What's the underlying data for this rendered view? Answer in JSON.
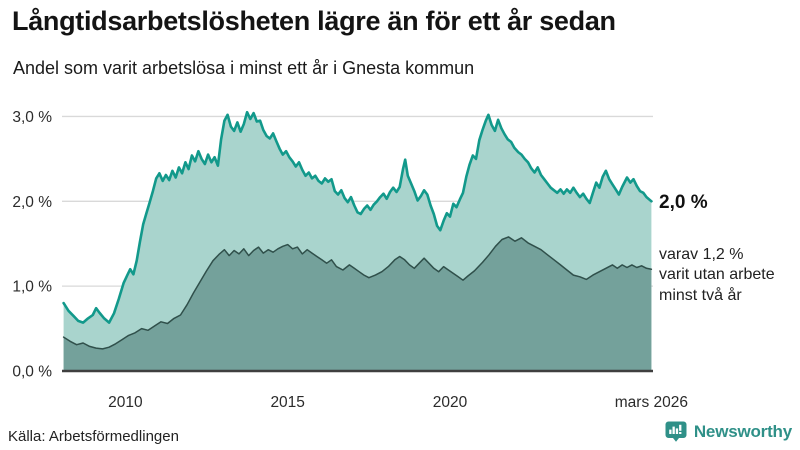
{
  "header": {
    "title": "Långtidsarbetslösheten lägre än för ett år sedan",
    "subtitle": "Andel som varit arbetslösa i minst ett år i Gnesta kommun"
  },
  "annotations": {
    "end_value": "2,0 %",
    "secondary": "varav 1,2 %\nvarit utan arbete\nminst två år"
  },
  "footer": {
    "source": "Källa: Arbetsförmedlingen",
    "brand": "Newsworthy",
    "brand_color": "#2f9088"
  },
  "chart_data": {
    "type": "area",
    "title": "Långtidsarbetslösheten lägre än för ett år sedan",
    "subtitle": "Andel som varit arbetslösa i minst ett år i Gnesta kommun",
    "source": "Arbetsförmedlingen",
    "unit": "%",
    "grid": "horizontal",
    "legend_position": "right-annotations",
    "xlim": [
      2008.05,
      2026.25
    ],
    "ylim": [
      0,
      3.3
    ],
    "x_ticks": [
      {
        "year": 2010,
        "label": "2010"
      },
      {
        "year": 2015,
        "label": "2015"
      },
      {
        "year": 2020,
        "label": "2020"
      },
      {
        "year": 2026.2,
        "label": "mars 2026"
      }
    ],
    "y_ticks": [
      {
        "value": 0,
        "label": "0,0 %"
      },
      {
        "value": 1,
        "label": "1,0 %"
      },
      {
        "value": 2,
        "label": "2,0 %"
      },
      {
        "value": 3,
        "label": "3,0 %"
      }
    ],
    "colors": {
      "gridline": "#d9d9d9",
      "axis": "#3f3f3f"
    },
    "series": [
      {
        "id": "unemployed-min-one-year",
        "name": "Andel arbetslösa minst ett år",
        "latest_value": "2,0 %",
        "color": "#12998b",
        "fill": "#a9d4cd",
        "stroke_width": 2.6,
        "points": [
          [
            2008.1,
            0.8
          ],
          [
            2008.25,
            0.71
          ],
          [
            2008.4,
            0.65
          ],
          [
            2008.55,
            0.59
          ],
          [
            2008.7,
            0.57
          ],
          [
            2008.85,
            0.62
          ],
          [
            2009.0,
            0.66
          ],
          [
            2009.1,
            0.74
          ],
          [
            2009.2,
            0.69
          ],
          [
            2009.35,
            0.62
          ],
          [
            2009.5,
            0.57
          ],
          [
            2009.65,
            0.68
          ],
          [
            2009.8,
            0.85
          ],
          [
            2009.95,
            1.04
          ],
          [
            2010.05,
            1.12
          ],
          [
            2010.15,
            1.2
          ],
          [
            2010.25,
            1.14
          ],
          [
            2010.35,
            1.3
          ],
          [
            2010.45,
            1.52
          ],
          [
            2010.55,
            1.73
          ],
          [
            2010.65,
            1.86
          ],
          [
            2010.75,
            1.99
          ],
          [
            2010.85,
            2.12
          ],
          [
            2010.95,
            2.27
          ],
          [
            2011.05,
            2.33
          ],
          [
            2011.15,
            2.24
          ],
          [
            2011.25,
            2.31
          ],
          [
            2011.35,
            2.25
          ],
          [
            2011.45,
            2.36
          ],
          [
            2011.55,
            2.28
          ],
          [
            2011.65,
            2.4
          ],
          [
            2011.75,
            2.33
          ],
          [
            2011.85,
            2.46
          ],
          [
            2011.95,
            2.38
          ],
          [
            2012.05,
            2.54
          ],
          [
            2012.15,
            2.47
          ],
          [
            2012.25,
            2.59
          ],
          [
            2012.35,
            2.5
          ],
          [
            2012.45,
            2.44
          ],
          [
            2012.55,
            2.55
          ],
          [
            2012.65,
            2.46
          ],
          [
            2012.75,
            2.52
          ],
          [
            2012.85,
            2.42
          ],
          [
            2012.95,
            2.73
          ],
          [
            2013.05,
            2.95
          ],
          [
            2013.15,
            3.02
          ],
          [
            2013.25,
            2.88
          ],
          [
            2013.35,
            2.83
          ],
          [
            2013.45,
            2.93
          ],
          [
            2013.55,
            2.82
          ],
          [
            2013.65,
            2.91
          ],
          [
            2013.75,
            3.05
          ],
          [
            2013.85,
            2.97
          ],
          [
            2013.95,
            3.04
          ],
          [
            2014.05,
            2.94
          ],
          [
            2014.15,
            2.95
          ],
          [
            2014.25,
            2.84
          ],
          [
            2014.35,
            2.77
          ],
          [
            2014.45,
            2.74
          ],
          [
            2014.55,
            2.8
          ],
          [
            2014.65,
            2.71
          ],
          [
            2014.75,
            2.62
          ],
          [
            2014.85,
            2.55
          ],
          [
            2014.95,
            2.59
          ],
          [
            2015.05,
            2.52
          ],
          [
            2015.15,
            2.47
          ],
          [
            2015.25,
            2.41
          ],
          [
            2015.35,
            2.46
          ],
          [
            2015.45,
            2.37
          ],
          [
            2015.55,
            2.3
          ],
          [
            2015.65,
            2.34
          ],
          [
            2015.75,
            2.27
          ],
          [
            2015.85,
            2.3
          ],
          [
            2015.95,
            2.24
          ],
          [
            2016.05,
            2.21
          ],
          [
            2016.15,
            2.27
          ],
          [
            2016.25,
            2.23
          ],
          [
            2016.35,
            2.26
          ],
          [
            2016.45,
            2.12
          ],
          [
            2016.55,
            2.08
          ],
          [
            2016.65,
            2.13
          ],
          [
            2016.75,
            2.04
          ],
          [
            2016.85,
            1.99
          ],
          [
            2016.95,
            2.05
          ],
          [
            2017.05,
            1.95
          ],
          [
            2017.15,
            1.87
          ],
          [
            2017.25,
            1.85
          ],
          [
            2017.35,
            1.91
          ],
          [
            2017.45,
            1.95
          ],
          [
            2017.55,
            1.9
          ],
          [
            2017.65,
            1.96
          ],
          [
            2017.75,
            2.0
          ],
          [
            2017.85,
            2.05
          ],
          [
            2017.95,
            2.09
          ],
          [
            2018.05,
            2.03
          ],
          [
            2018.15,
            2.11
          ],
          [
            2018.25,
            2.16
          ],
          [
            2018.35,
            2.11
          ],
          [
            2018.45,
            2.17
          ],
          [
            2018.55,
            2.38
          ],
          [
            2018.62,
            2.49
          ],
          [
            2018.7,
            2.3
          ],
          [
            2018.8,
            2.21
          ],
          [
            2018.9,
            2.12
          ],
          [
            2019.0,
            2.01
          ],
          [
            2019.1,
            2.06
          ],
          [
            2019.2,
            2.13
          ],
          [
            2019.3,
            2.08
          ],
          [
            2019.4,
            1.95
          ],
          [
            2019.5,
            1.85
          ],
          [
            2019.6,
            1.71
          ],
          [
            2019.7,
            1.66
          ],
          [
            2019.8,
            1.77
          ],
          [
            2019.9,
            1.86
          ],
          [
            2020.0,
            1.82
          ],
          [
            2020.1,
            1.97
          ],
          [
            2020.2,
            1.93
          ],
          [
            2020.3,
            2.02
          ],
          [
            2020.4,
            2.1
          ],
          [
            2020.5,
            2.29
          ],
          [
            2020.6,
            2.43
          ],
          [
            2020.7,
            2.54
          ],
          [
            2020.8,
            2.5
          ],
          [
            2020.9,
            2.72
          ],
          [
            2021.0,
            2.84
          ],
          [
            2021.1,
            2.95
          ],
          [
            2021.18,
            3.02
          ],
          [
            2021.28,
            2.9
          ],
          [
            2021.38,
            2.83
          ],
          [
            2021.48,
            2.96
          ],
          [
            2021.58,
            2.86
          ],
          [
            2021.68,
            2.79
          ],
          [
            2021.78,
            2.73
          ],
          [
            2021.88,
            2.7
          ],
          [
            2021.98,
            2.63
          ],
          [
            2022.1,
            2.58
          ],
          [
            2022.2,
            2.55
          ],
          [
            2022.3,
            2.5
          ],
          [
            2022.4,
            2.46
          ],
          [
            2022.5,
            2.39
          ],
          [
            2022.6,
            2.34
          ],
          [
            2022.7,
            2.4
          ],
          [
            2022.8,
            2.31
          ],
          [
            2022.9,
            2.26
          ],
          [
            2023.0,
            2.21
          ],
          [
            2023.1,
            2.16
          ],
          [
            2023.2,
            2.13
          ],
          [
            2023.3,
            2.1
          ],
          [
            2023.4,
            2.14
          ],
          [
            2023.5,
            2.09
          ],
          [
            2023.6,
            2.14
          ],
          [
            2023.7,
            2.1
          ],
          [
            2023.8,
            2.16
          ],
          [
            2023.9,
            2.1
          ],
          [
            2024.0,
            2.05
          ],
          [
            2024.1,
            2.09
          ],
          [
            2024.2,
            2.03
          ],
          [
            2024.3,
            1.98
          ],
          [
            2024.4,
            2.1
          ],
          [
            2024.5,
            2.22
          ],
          [
            2024.6,
            2.16
          ],
          [
            2024.7,
            2.29
          ],
          [
            2024.8,
            2.36
          ],
          [
            2024.9,
            2.26
          ],
          [
            2025.0,
            2.2
          ],
          [
            2025.1,
            2.14
          ],
          [
            2025.2,
            2.08
          ],
          [
            2025.3,
            2.17
          ],
          [
            2025.45,
            2.28
          ],
          [
            2025.55,
            2.22
          ],
          [
            2025.65,
            2.26
          ],
          [
            2025.75,
            2.18
          ],
          [
            2025.85,
            2.12
          ],
          [
            2025.95,
            2.1
          ],
          [
            2026.05,
            2.05
          ],
          [
            2026.2,
            2.0
          ]
        ]
      },
      {
        "id": "unemployed-min-two-years",
        "name": "varav utan arbete minst två år",
        "latest_value": "1,2 %",
        "color": "#30504b",
        "fill": "#74a19b",
        "stroke_width": 1.5,
        "points": [
          [
            2008.1,
            0.4
          ],
          [
            2008.3,
            0.35
          ],
          [
            2008.5,
            0.31
          ],
          [
            2008.7,
            0.33
          ],
          [
            2008.9,
            0.29
          ],
          [
            2009.1,
            0.27
          ],
          [
            2009.3,
            0.26
          ],
          [
            2009.5,
            0.28
          ],
          [
            2009.7,
            0.32
          ],
          [
            2009.9,
            0.37
          ],
          [
            2010.1,
            0.42
          ],
          [
            2010.3,
            0.45
          ],
          [
            2010.5,
            0.5
          ],
          [
            2010.7,
            0.48
          ],
          [
            2010.9,
            0.53
          ],
          [
            2011.1,
            0.58
          ],
          [
            2011.3,
            0.56
          ],
          [
            2011.5,
            0.62
          ],
          [
            2011.7,
            0.66
          ],
          [
            2011.9,
            0.78
          ],
          [
            2012.1,
            0.92
          ],
          [
            2012.3,
            1.05
          ],
          [
            2012.5,
            1.18
          ],
          [
            2012.7,
            1.3
          ],
          [
            2012.9,
            1.38
          ],
          [
            2013.05,
            1.43
          ],
          [
            2013.2,
            1.36
          ],
          [
            2013.35,
            1.42
          ],
          [
            2013.5,
            1.38
          ],
          [
            2013.65,
            1.44
          ],
          [
            2013.8,
            1.36
          ],
          [
            2013.95,
            1.42
          ],
          [
            2014.1,
            1.46
          ],
          [
            2014.25,
            1.39
          ],
          [
            2014.4,
            1.43
          ],
          [
            2014.55,
            1.4
          ],
          [
            2014.7,
            1.44
          ],
          [
            2014.85,
            1.47
          ],
          [
            2015.0,
            1.49
          ],
          [
            2015.15,
            1.44
          ],
          [
            2015.3,
            1.46
          ],
          [
            2015.45,
            1.38
          ],
          [
            2015.6,
            1.43
          ],
          [
            2015.75,
            1.39
          ],
          [
            2015.9,
            1.35
          ],
          [
            2016.05,
            1.31
          ],
          [
            2016.2,
            1.27
          ],
          [
            2016.35,
            1.31
          ],
          [
            2016.5,
            1.23
          ],
          [
            2016.7,
            1.19
          ],
          [
            2016.9,
            1.25
          ],
          [
            2017.05,
            1.21
          ],
          [
            2017.2,
            1.17
          ],
          [
            2017.35,
            1.13
          ],
          [
            2017.5,
            1.1
          ],
          [
            2017.7,
            1.13
          ],
          [
            2017.9,
            1.17
          ],
          [
            2018.1,
            1.23
          ],
          [
            2018.3,
            1.31
          ],
          [
            2018.45,
            1.35
          ],
          [
            2018.6,
            1.31
          ],
          [
            2018.75,
            1.25
          ],
          [
            2018.9,
            1.21
          ],
          [
            2019.05,
            1.27
          ],
          [
            2019.2,
            1.33
          ],
          [
            2019.35,
            1.27
          ],
          [
            2019.5,
            1.21
          ],
          [
            2019.65,
            1.17
          ],
          [
            2019.8,
            1.23
          ],
          [
            2019.95,
            1.19
          ],
          [
            2020.1,
            1.15
          ],
          [
            2020.25,
            1.11
          ],
          [
            2020.4,
            1.07
          ],
          [
            2020.55,
            1.12
          ],
          [
            2020.75,
            1.18
          ],
          [
            2021.0,
            1.28
          ],
          [
            2021.2,
            1.37
          ],
          [
            2021.4,
            1.47
          ],
          [
            2021.6,
            1.55
          ],
          [
            2021.8,
            1.58
          ],
          [
            2022.0,
            1.53
          ],
          [
            2022.2,
            1.57
          ],
          [
            2022.4,
            1.51
          ],
          [
            2022.6,
            1.47
          ],
          [
            2022.8,
            1.43
          ],
          [
            2023.0,
            1.37
          ],
          [
            2023.2,
            1.31
          ],
          [
            2023.4,
            1.25
          ],
          [
            2023.6,
            1.19
          ],
          [
            2023.8,
            1.13
          ],
          [
            2024.0,
            1.11
          ],
          [
            2024.2,
            1.08
          ],
          [
            2024.4,
            1.13
          ],
          [
            2024.6,
            1.17
          ],
          [
            2024.8,
            1.21
          ],
          [
            2025.0,
            1.25
          ],
          [
            2025.15,
            1.21
          ],
          [
            2025.3,
            1.25
          ],
          [
            2025.45,
            1.22
          ],
          [
            2025.6,
            1.25
          ],
          [
            2025.75,
            1.22
          ],
          [
            2025.9,
            1.24
          ],
          [
            2026.05,
            1.21
          ],
          [
            2026.2,
            1.2
          ]
        ]
      }
    ]
  }
}
